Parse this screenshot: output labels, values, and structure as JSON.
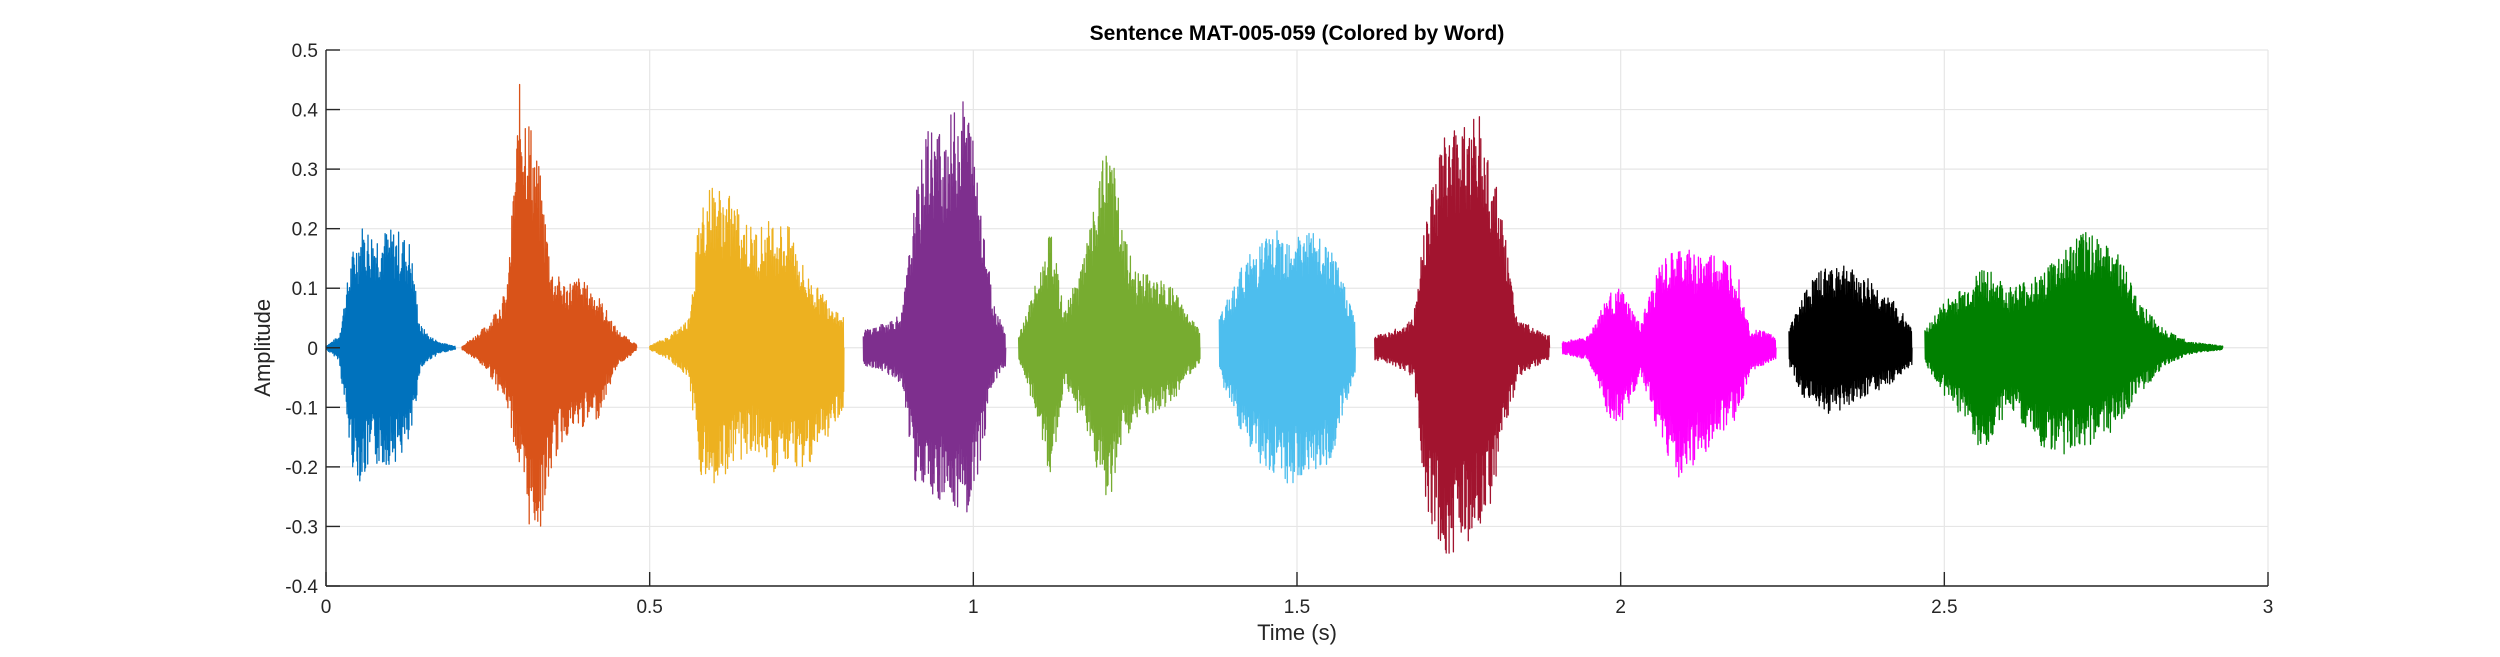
{
  "chart_data": {
    "type": "line",
    "title": "Sentence MAT-005-059 (Colored by Word)",
    "xlabel": "Time (s)",
    "ylabel": "Amplitude",
    "xlim": [
      0,
      3
    ],
    "ylim": [
      -0.4,
      0.5
    ],
    "x_ticks": [
      0,
      0.5,
      1,
      1.5,
      2,
      2.5,
      3
    ],
    "x_tick_labels": [
      "0",
      "0.5",
      "1",
      "1.5",
      "2",
      "2.5",
      "3"
    ],
    "y_ticks": [
      -0.4,
      -0.3,
      -0.2,
      -0.1,
      0,
      0.1,
      0.2,
      0.3,
      0.4,
      0.5
    ],
    "y_tick_labels": [
      "-0.4",
      "-0.3",
      "-0.2",
      "-0.1",
      "0",
      "0.1",
      "0.2",
      "0.3",
      "0.4",
      "0.5"
    ],
    "grid": true,
    "series": [
      {
        "color": "#0072BD",
        "x_start": 0.0,
        "x_end": 0.2,
        "x": [
          0.0,
          0.02,
          0.04,
          0.055,
          0.07,
          0.09,
          0.11,
          0.13,
          0.145,
          0.16,
          0.175,
          0.19,
          0.2
        ],
        "env_max": [
          0.003,
          0.02,
          0.16,
          0.21,
          0.2,
          0.2,
          0.2,
          0.18,
          0.04,
          0.02,
          0.01,
          0.005,
          0.003
        ],
        "env_min": [
          -0.003,
          -0.02,
          -0.2,
          -0.23,
          -0.2,
          -0.2,
          -0.19,
          -0.17,
          -0.04,
          -0.02,
          -0.01,
          -0.005,
          -0.003
        ]
      },
      {
        "color": "#D95319",
        "x_start": 0.21,
        "x_end": 0.48,
        "x": [
          0.21,
          0.23,
          0.25,
          0.28,
          0.3,
          0.31,
          0.33,
          0.35,
          0.37,
          0.39,
          0.42,
          0.45,
          0.48
        ],
        "env_max": [
          0.003,
          0.02,
          0.04,
          0.1,
          0.46,
          0.42,
          0.3,
          0.13,
          0.11,
          0.12,
          0.09,
          0.03,
          0.005
        ],
        "env_min": [
          -0.003,
          -0.02,
          -0.04,
          -0.1,
          -0.22,
          -0.3,
          -0.31,
          -0.2,
          -0.15,
          -0.14,
          -0.12,
          -0.03,
          -0.005
        ]
      },
      {
        "color": "#EDB120",
        "x_start": 0.5,
        "x_end": 0.8,
        "x": [
          0.5,
          0.53,
          0.56,
          0.58,
          0.6,
          0.63,
          0.66,
          0.69,
          0.72,
          0.74,
          0.76,
          0.78,
          0.8
        ],
        "env_max": [
          0.003,
          0.02,
          0.05,
          0.26,
          0.28,
          0.25,
          0.2,
          0.22,
          0.2,
          0.13,
          0.1,
          0.08,
          0.05
        ],
        "env_min": [
          -0.003,
          -0.02,
          -0.05,
          -0.22,
          -0.23,
          -0.2,
          -0.17,
          -0.21,
          -0.2,
          -0.2,
          -0.18,
          -0.14,
          -0.1
        ]
      },
      {
        "color": "#7E2F8E",
        "x_start": 0.83,
        "x_end": 1.05,
        "x": [
          0.83,
          0.86,
          0.89,
          0.91,
          0.93,
          0.95,
          0.97,
          0.99,
          1.01,
          1.03,
          1.05
        ],
        "env_max": [
          0.03,
          0.04,
          0.06,
          0.25,
          0.38,
          0.37,
          0.4,
          0.43,
          0.28,
          0.08,
          0.03
        ],
        "env_min": [
          -0.03,
          -0.04,
          -0.06,
          -0.23,
          -0.25,
          -0.26,
          -0.28,
          -0.3,
          -0.2,
          -0.06,
          -0.03
        ]
      },
      {
        "color": "#77AC30",
        "x_start": 1.07,
        "x_end": 1.35,
        "x": [
          1.07,
          1.1,
          1.12,
          1.14,
          1.17,
          1.19,
          1.21,
          1.23,
          1.25,
          1.28,
          1.31,
          1.33,
          1.35
        ],
        "env_max": [
          0.02,
          0.12,
          0.2,
          0.06,
          0.15,
          0.25,
          0.38,
          0.2,
          0.13,
          0.12,
          0.1,
          0.06,
          0.03
        ],
        "env_min": [
          -0.02,
          -0.12,
          -0.23,
          -0.06,
          -0.13,
          -0.2,
          -0.27,
          -0.17,
          -0.12,
          -0.11,
          -0.09,
          -0.05,
          -0.03
        ]
      },
      {
        "color": "#4DBEEE",
        "x_start": 1.38,
        "x_end": 1.59,
        "x": [
          1.38,
          1.4,
          1.42,
          1.45,
          1.48,
          1.5,
          1.52,
          1.55,
          1.57,
          1.59
        ],
        "env_max": [
          0.05,
          0.1,
          0.15,
          0.19,
          0.2,
          0.2,
          0.2,
          0.17,
          0.12,
          0.05
        ],
        "env_min": [
          -0.05,
          -0.1,
          -0.16,
          -0.21,
          -0.23,
          -0.23,
          -0.22,
          -0.2,
          -0.12,
          -0.05
        ]
      },
      {
        "color": "#A2142F",
        "x_start": 1.62,
        "x_end": 1.89,
        "x": [
          1.62,
          1.65,
          1.68,
          1.7,
          1.72,
          1.74,
          1.76,
          1.78,
          1.8,
          1.82,
          1.84,
          1.87,
          1.89
        ],
        "env_max": [
          0.02,
          0.03,
          0.05,
          0.25,
          0.35,
          0.38,
          0.39,
          0.4,
          0.32,
          0.2,
          0.05,
          0.03,
          0.02
        ],
        "env_min": [
          -0.02,
          -0.03,
          -0.05,
          -0.27,
          -0.33,
          -0.36,
          -0.34,
          -0.31,
          -0.26,
          -0.16,
          -0.05,
          -0.03,
          -0.02
        ]
      },
      {
        "color": "#FF00FF",
        "x_start": 1.91,
        "x_end": 2.24,
        "x": [
          1.91,
          1.95,
          1.98,
          2.0,
          2.03,
          2.06,
          2.09,
          2.12,
          2.15,
          2.18,
          2.2,
          2.22,
          2.24
        ],
        "env_max": [
          0.01,
          0.02,
          0.09,
          0.1,
          0.04,
          0.14,
          0.17,
          0.16,
          0.16,
          0.14,
          0.03,
          0.03,
          0.02
        ],
        "env_min": [
          -0.01,
          -0.02,
          -0.12,
          -0.13,
          -0.05,
          -0.15,
          -0.22,
          -0.19,
          -0.15,
          -0.12,
          -0.04,
          -0.03,
          -0.02
        ]
      },
      {
        "color": "#000000",
        "x_start": 2.26,
        "x_end": 2.45,
        "x": [
          2.26,
          2.28,
          2.3,
          2.32,
          2.34,
          2.36,
          2.38,
          2.4,
          2.42,
          2.45
        ],
        "env_max": [
          0.03,
          0.09,
          0.12,
          0.14,
          0.15,
          0.13,
          0.12,
          0.1,
          0.08,
          0.04
        ],
        "env_min": [
          -0.03,
          -0.08,
          -0.1,
          -0.11,
          -0.11,
          -0.09,
          -0.08,
          -0.07,
          -0.06,
          -0.03
        ]
      },
      {
        "color": "#008000",
        "x_start": 2.47,
        "x_end": 2.93,
        "x": [
          2.47,
          2.5,
          2.53,
          2.56,
          2.6,
          2.64,
          2.68,
          2.72,
          2.76,
          2.8,
          2.84,
          2.88,
          2.93
        ],
        "env_max": [
          0.03,
          0.08,
          0.1,
          0.14,
          0.1,
          0.12,
          0.16,
          0.2,
          0.18,
          0.08,
          0.03,
          0.01,
          0.003
        ],
        "env_min": [
          -0.03,
          -0.08,
          -0.12,
          -0.18,
          -0.1,
          -0.16,
          -0.18,
          -0.17,
          -0.14,
          -0.08,
          -0.03,
          -0.01,
          -0.003
        ]
      }
    ]
  }
}
